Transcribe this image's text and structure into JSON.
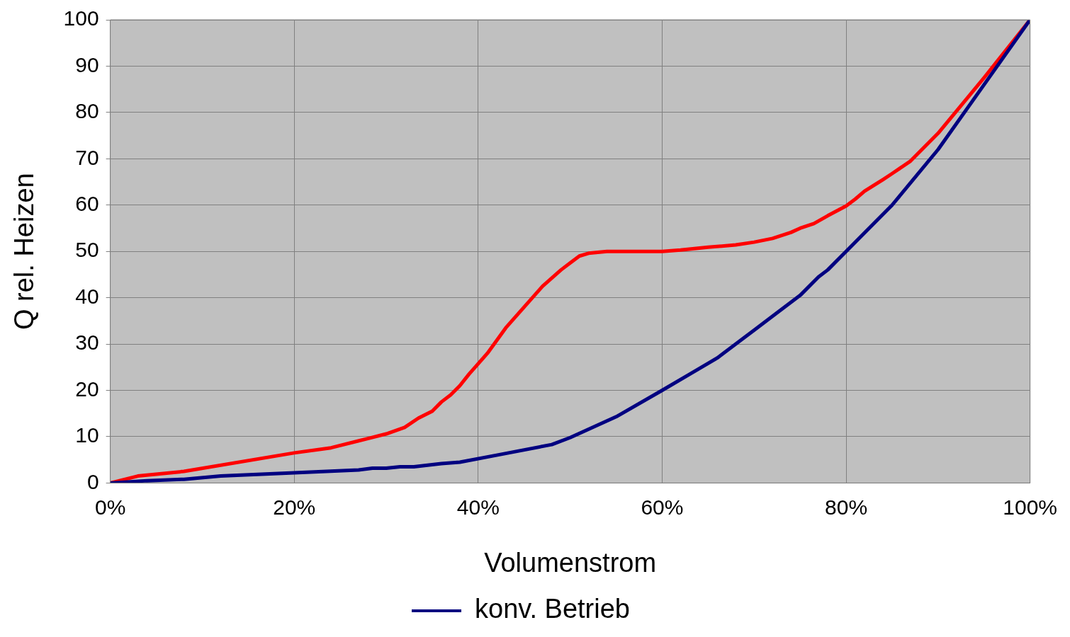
{
  "chart_data": {
    "type": "line",
    "xlabel": "Volumenstrom",
    "ylabel": "Q rel. Heizen",
    "xlim": [
      0,
      100
    ],
    "xticks": [
      {
        "value": 0,
        "label": "0%"
      },
      {
        "value": 20,
        "label": "20%"
      },
      {
        "value": 40,
        "label": "40%"
      },
      {
        "value": 60,
        "label": "60%"
      },
      {
        "value": 80,
        "label": "80%"
      },
      {
        "value": 100,
        "label": "100%"
      }
    ],
    "ylim": [
      0,
      100
    ],
    "yticks": [
      0,
      10,
      20,
      30,
      40,
      50,
      60,
      70,
      80,
      90,
      100
    ],
    "grid": true,
    "legend": "bottom",
    "marker": "none",
    "line_style": "solid",
    "series": [
      {
        "name": "konv. Betrieb",
        "color": "#000080",
        "x": [
          0,
          4,
          8,
          12,
          20,
          27,
          28.5,
          30,
          31.5,
          33,
          36,
          38,
          42,
          48,
          50,
          55,
          60,
          63,
          66,
          69,
          70,
          72,
          75,
          77,
          78,
          80,
          82,
          85,
          90,
          95,
          100
        ],
        "values": [
          0,
          0.5,
          0.8,
          1.5,
          2.2,
          2.8,
          3.2,
          3.2,
          3.5,
          3.5,
          4.2,
          4.5,
          6,
          8.3,
          9.8,
          14.3,
          20,
          23.5,
          27,
          31.5,
          33,
          36,
          40.5,
          44.5,
          46,
          50,
          54,
          60,
          72,
          86,
          100
        ]
      },
      {
        "color": "#ff0000",
        "x": [
          0,
          3,
          8,
          20,
          24,
          28,
          30,
          32,
          33.5,
          35,
          36,
          37,
          38,
          39,
          41,
          43,
          47,
          49,
          50,
          51,
          52,
          54,
          60,
          62,
          65,
          68,
          70,
          72,
          74,
          75,
          76.5,
          78,
          80,
          81,
          82,
          84,
          85,
          87,
          90,
          95,
          100
        ],
        "values": [
          0,
          1.5,
          2.5,
          6.5,
          7.6,
          9.6,
          10.6,
          12,
          14,
          15.5,
          17.5,
          19,
          21,
          23.5,
          28,
          33.5,
          42.5,
          46,
          47.5,
          49,
          49.6,
          50,
          50,
          50.3,
          50.9,
          51.4,
          52,
          52.8,
          54.1,
          55,
          56,
          57.7,
          59.8,
          61.3,
          63,
          65.5,
          66.8,
          69.5,
          75.5,
          87.5,
          100
        ]
      }
    ]
  }
}
